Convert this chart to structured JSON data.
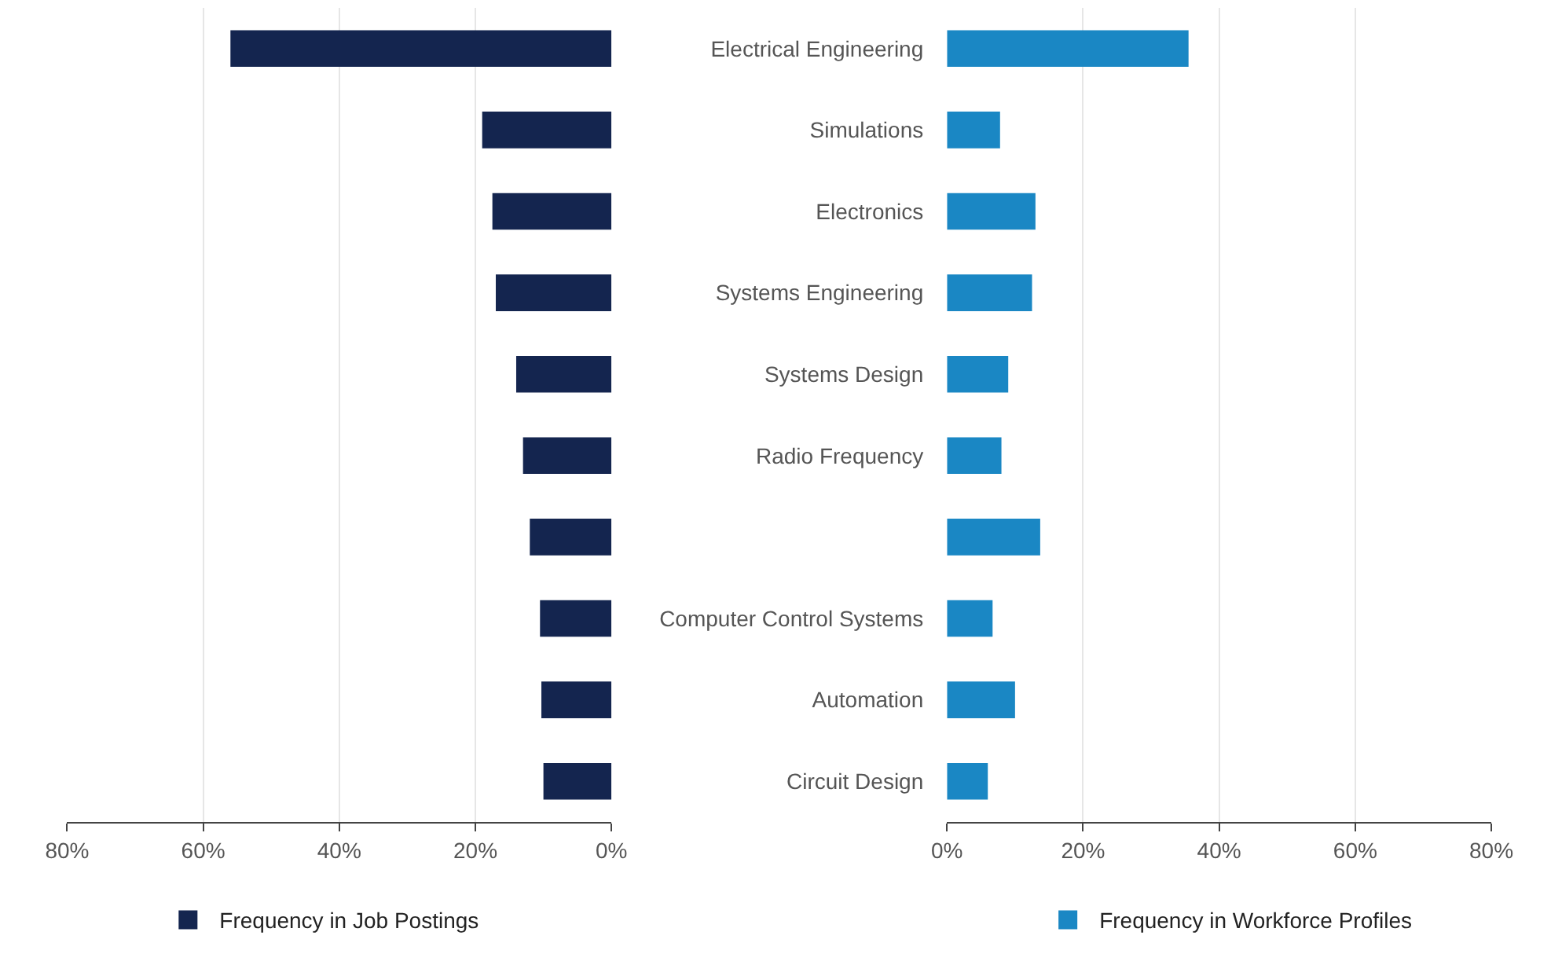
{
  "chart_data": [
    {
      "type": "bar",
      "orientation": "horizontal",
      "categories": [
        null,
        null,
        null,
        null,
        null,
        null,
        null,
        null,
        null,
        null
      ],
      "series": [
        {
          "name": "Frequency in Job Postings",
          "color": "#14254f",
          "values": [
            56,
            19,
            17.5,
            17,
            14,
            13,
            12,
            10.5,
            10.3,
            10
          ]
        }
      ],
      "xlim": [
        80,
        0
      ],
      "xticks": [
        {
          "value": 80,
          "label": "80%"
        },
        {
          "value": 60,
          "label": "60%"
        },
        {
          "value": 40,
          "label": "40%"
        },
        {
          "value": 20,
          "label": "20%"
        },
        {
          "value": 0,
          "label": "0%"
        }
      ],
      "grid": "x",
      "legend": "bottom left",
      "tick_labels": "x"
    },
    {
      "type": "bar",
      "orientation": "horizontal",
      "categories": [
        "Electrical Engineering",
        "Simulations",
        "Electronics",
        "Systems Engineering",
        "Systems Design",
        "Radio Frequency",
        null,
        "Computer Control Systems",
        "Automation",
        "Circuit Design"
      ],
      "series": [
        {
          "name": "Frequency in Workforce Profiles",
          "color": "#1a87c4",
          "values": [
            35.5,
            7.8,
            13,
            12.5,
            9,
            8,
            13.7,
            6.7,
            10,
            6
          ]
        }
      ],
      "xlim": [
        0,
        80
      ],
      "xticks": [
        {
          "value": 0,
          "label": "0%"
        },
        {
          "value": 20,
          "label": "20%"
        },
        {
          "value": 40,
          "label": "40%"
        },
        {
          "value": 60,
          "label": "60%"
        },
        {
          "value": 80,
          "label": "80%"
        }
      ],
      "grid": "x",
      "legend": "bottom left"
    }
  ]
}
